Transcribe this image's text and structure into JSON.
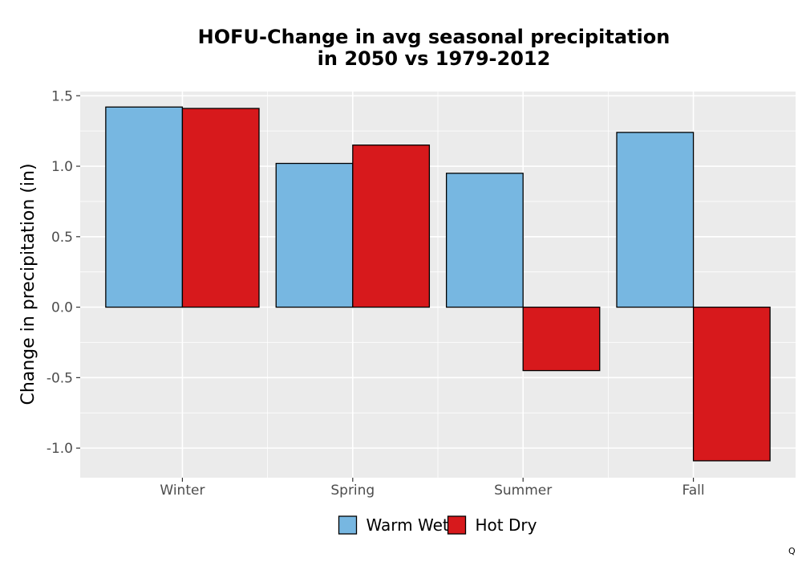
{
  "chart_data": {
    "type": "bar",
    "title": [
      "HOFU-Change in avg seasonal precipitation",
      "in 2050 vs 1979-2012"
    ],
    "xlabel": "",
    "ylabel": "Change in precipitation (in)",
    "categories": [
      "Winter",
      "Spring",
      "Summer",
      "Fall"
    ],
    "series": [
      {
        "name": "Warm Wet",
        "values": [
          1.42,
          1.02,
          0.95,
          1.24
        ],
        "color": "#77b7e1"
      },
      {
        "name": "Hot Dry",
        "values": [
          1.41,
          1.15,
          -0.45,
          -1.09
        ],
        "color": "#d7191c"
      }
    ],
    "ylim": [
      -1.21,
      1.53
    ],
    "yticks": [
      -1.0,
      -0.5,
      0.0,
      0.5,
      1.0,
      1.5
    ],
    "ytick_labels": [
      "-1.0",
      "-0.5",
      "0.0",
      "0.5",
      "1.0",
      "1.5"
    ],
    "grid": true,
    "legend_position": "bottom",
    "panel_background": "#ebebeb"
  },
  "corner_mark": "Q"
}
